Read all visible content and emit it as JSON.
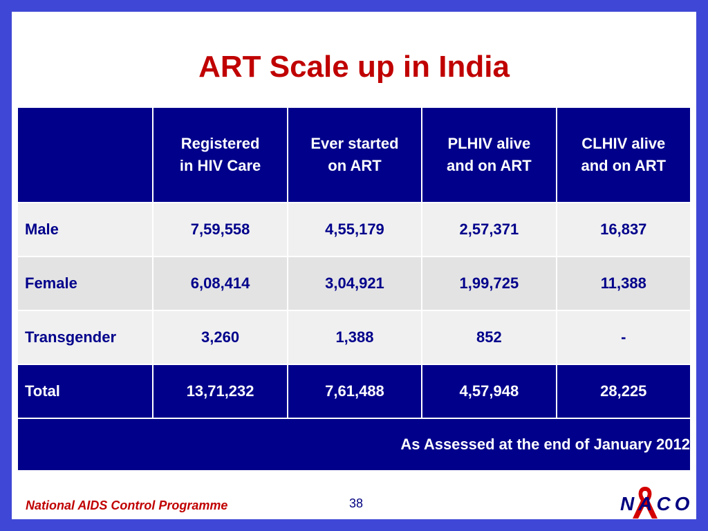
{
  "title": "ART Scale up in India",
  "table": {
    "headers": [
      "",
      "Registered in HIV Care",
      "Ever started on ART",
      "PLHIV alive and on ART",
      "CLHIV alive and on ART"
    ],
    "header_lines": [
      [],
      [
        "Registered",
        "in HIV Care"
      ],
      [
        "Ever started",
        "on ART"
      ],
      [
        "PLHIV alive",
        "and on ART"
      ],
      [
        "CLHIV alive",
        "and on ART"
      ]
    ],
    "rows": [
      {
        "label": "Male",
        "values": [
          "7,59,558",
          "4,55,179",
          "2,57,371",
          "16,837"
        ]
      },
      {
        "label": "Female",
        "values": [
          "6,08,414",
          "3,04,921",
          "1,99,725",
          "11,388"
        ]
      },
      {
        "label": "Transgender",
        "values": [
          "3,260",
          "1,388",
          "852",
          "-"
        ]
      }
    ],
    "total": {
      "label": "Total",
      "values": [
        "13,71,232",
        "7,61,488",
        "4,57,948",
        "28,225"
      ]
    },
    "note": "As Assessed at the end of January 2012"
  },
  "footer": {
    "organization": "National AIDS Control Programme",
    "page_number": "38",
    "logo_text": "NACO",
    "logo_icon": "red-ribbon-icon"
  },
  "colors": {
    "frame": "#3f48d6",
    "title": "#c00000",
    "header_bg": "#00008b",
    "row_text": "#00008b"
  }
}
